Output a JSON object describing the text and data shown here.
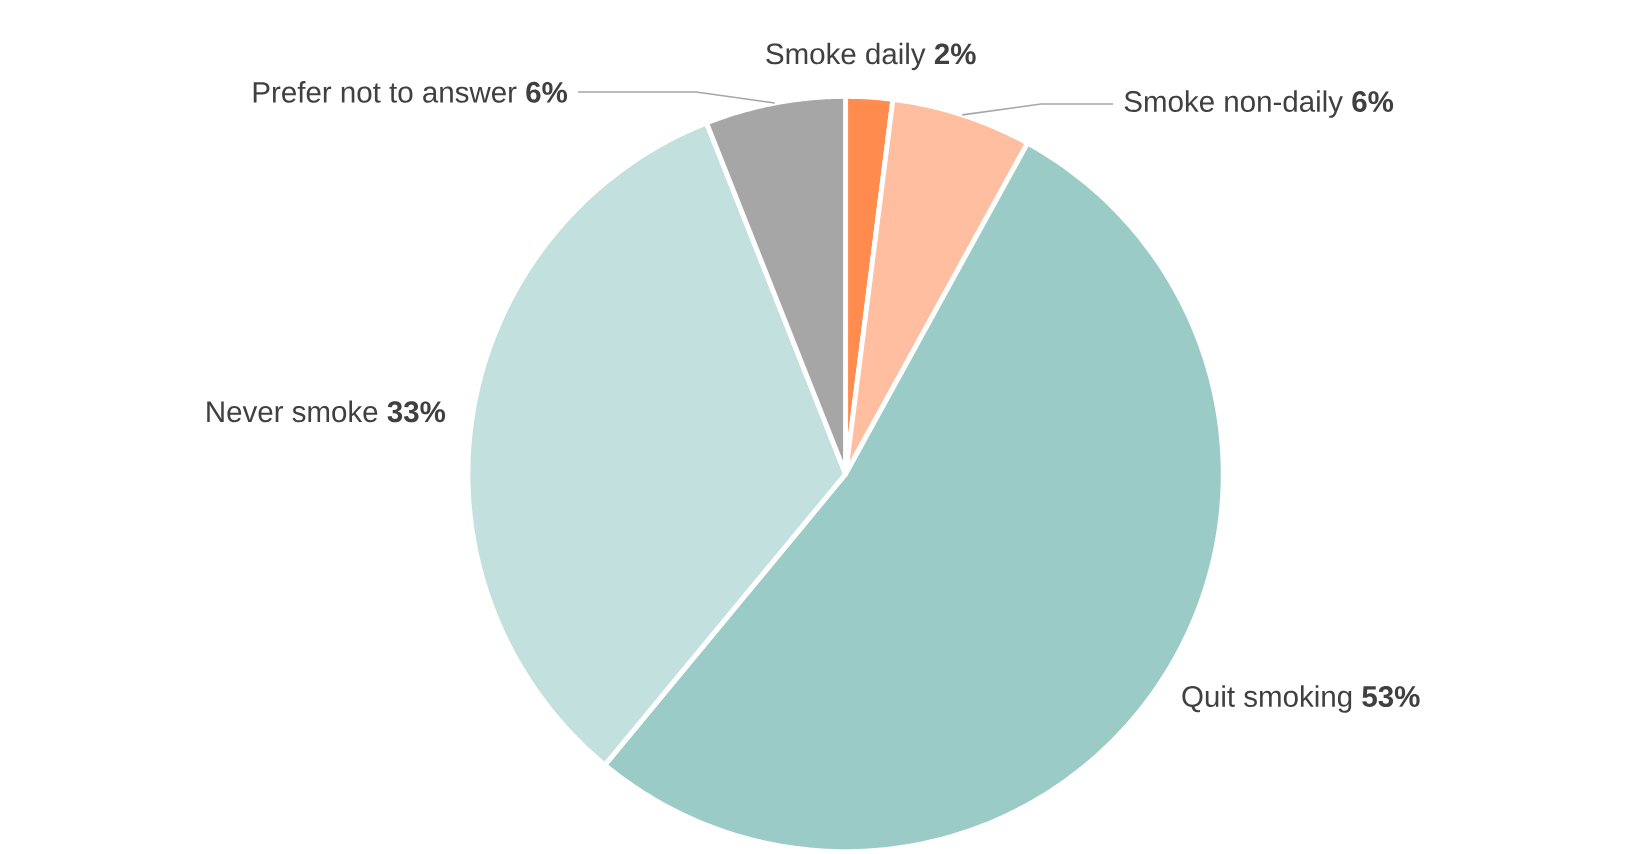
{
  "chart_data": {
    "type": "pie",
    "categories": [
      "Smoke daily",
      "Smoke non-daily",
      "Quit smoking",
      "Never smoke",
      "Prefer not to answer"
    ],
    "values": [
      2,
      6,
      53,
      33,
      6
    ],
    "value_labels": [
      "2%",
      "6%",
      "53%",
      "33%",
      "6%"
    ],
    "colors": [
      "#ff8b4f",
      "#ffbe9f",
      "#9bcbc7",
      "#c2e0dd",
      "#a6a6a6"
    ]
  }
}
